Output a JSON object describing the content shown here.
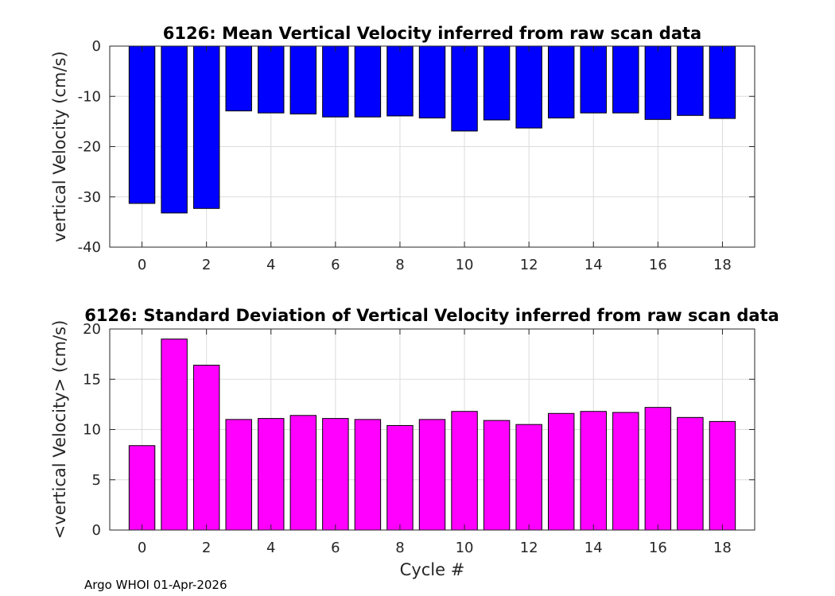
{
  "chart_data": [
    {
      "type": "bar",
      "title": "6126: Mean Vertical Velocity inferred from raw scan data",
      "xlabel": "",
      "ylabel": "vertical Velocity (cm/s)",
      "x": [
        0,
        1,
        2,
        3,
        4,
        5,
        6,
        7,
        8,
        9,
        10,
        11,
        12,
        13,
        14,
        15,
        16,
        17,
        18
      ],
      "values": [
        -31.3,
        -33.2,
        -32.3,
        -12.9,
        -13.3,
        -13.5,
        -14.1,
        -14.1,
        -13.9,
        -14.3,
        -16.9,
        -14.7,
        -16.3,
        -14.3,
        -13.3,
        -13.3,
        -14.6,
        -13.8,
        -14.4
      ],
      "xlim": [
        -1,
        19
      ],
      "ylim": [
        -40,
        0
      ],
      "xticks": [
        0,
        2,
        4,
        6,
        8,
        10,
        12,
        14,
        16,
        18
      ],
      "yticks": [
        -40,
        -30,
        -20,
        -10,
        0
      ],
      "bar_color": "#0000ff",
      "grid": true
    },
    {
      "type": "bar",
      "title": "6126: Standard Deviation of Vertical Velocity inferred from raw scan data",
      "xlabel": "Cycle #",
      "ylabel": "<vertical Velocity> (cm/s)",
      "x": [
        0,
        1,
        2,
        3,
        4,
        5,
        6,
        7,
        8,
        9,
        10,
        11,
        12,
        13,
        14,
        15,
        16,
        17,
        18
      ],
      "values": [
        8.4,
        19.0,
        16.4,
        11.0,
        11.1,
        11.4,
        11.1,
        11.0,
        10.4,
        11.0,
        11.8,
        10.9,
        10.5,
        11.6,
        11.8,
        11.7,
        12.2,
        11.2,
        10.8
      ],
      "xlim": [
        -1,
        19
      ],
      "ylim": [
        0,
        20
      ],
      "xticks": [
        0,
        2,
        4,
        6,
        8,
        10,
        12,
        14,
        16,
        18
      ],
      "yticks": [
        0,
        5,
        10,
        15,
        20
      ],
      "bar_color": "#ff00ff",
      "grid": true
    }
  ],
  "footer": "Argo WHOI 01-Apr-2026"
}
